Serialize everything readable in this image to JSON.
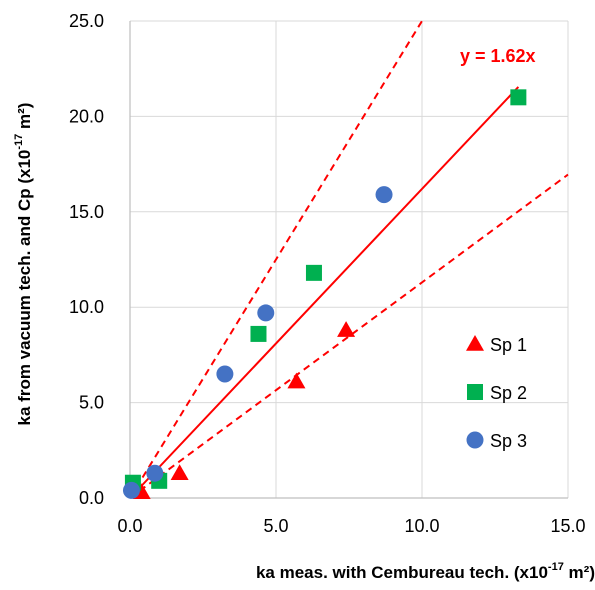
{
  "chart_data": {
    "type": "scatter",
    "xlabel": {
      "prefix": "ka meas. with Cembureau tech. (x10",
      "sup": "-17",
      "suffix": " m²)"
    },
    "ylabel": {
      "prefix": "ka from vacuum tech. and Cp (x10",
      "sup": "-17",
      "suffix": " m²)"
    },
    "xlim": [
      0,
      15
    ],
    "ylim": [
      0,
      25
    ],
    "x_ticks": [
      "0.0",
      "5.0",
      "10.0",
      "15.0"
    ],
    "y_ticks": [
      "0.0",
      "5.0",
      "10.0",
      "15.0",
      "20.0",
      "25.0"
    ],
    "grid": true,
    "legend_position": "right",
    "series": [
      {
        "name": "Sp 1",
        "marker": "triangle",
        "color": "#ff0000",
        "points": [
          {
            "x": 0.4,
            "y": 0.3
          },
          {
            "x": 1.7,
            "y": 1.3
          },
          {
            "x": 5.7,
            "y": 6.1
          },
          {
            "x": 7.4,
            "y": 8.8
          }
        ]
      },
      {
        "name": "Sp 2",
        "marker": "square",
        "color": "#00b050",
        "points": [
          {
            "x": 0.1,
            "y": 0.8
          },
          {
            "x": 1.0,
            "y": 0.9
          },
          {
            "x": 4.4,
            "y": 8.6
          },
          {
            "x": 6.3,
            "y": 11.8
          },
          {
            "x": 13.3,
            "y": 21.0
          }
        ]
      },
      {
        "name": "Sp 3",
        "marker": "circle",
        "color": "#4472c4",
        "points": [
          {
            "x": 0.05,
            "y": 0.4
          },
          {
            "x": 0.85,
            "y": 1.3
          },
          {
            "x": 3.25,
            "y": 6.5
          },
          {
            "x": 4.65,
            "y": 9.7
          },
          {
            "x": 8.7,
            "y": 15.9
          }
        ]
      }
    ],
    "fit_line": {
      "slope": 1.62,
      "label": "y = 1.62x",
      "color": "#ff0000",
      "style": "solid"
    },
    "bound_lines": [
      {
        "slope": 2.5,
        "color": "#ff0000",
        "style": "dashed"
      },
      {
        "slope": 1.13,
        "color": "#ff0000",
        "style": "dashed"
      }
    ]
  }
}
